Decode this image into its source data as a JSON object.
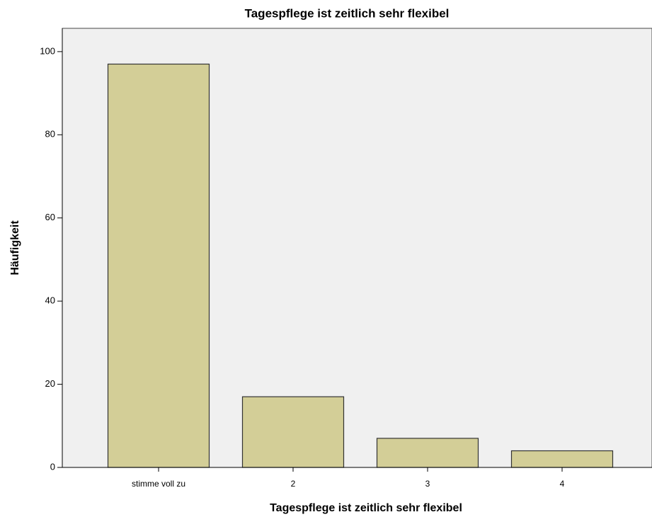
{
  "chart_data": {
    "type": "bar",
    "title": "Tagespflege ist zeitlich sehr flexibel",
    "x_label": "Tagespflege ist zeitlich sehr flexibel",
    "y_label": "Häufigkeit",
    "categories": [
      "stimme voll zu",
      "2",
      "3",
      "4"
    ],
    "values": [
      97,
      17,
      7,
      4
    ],
    "color": "#d3ce97",
    "ylim": [
      0,
      105.6
    ],
    "yticks": [
      0,
      20,
      40,
      60,
      80,
      100
    ],
    "grid": false
  }
}
